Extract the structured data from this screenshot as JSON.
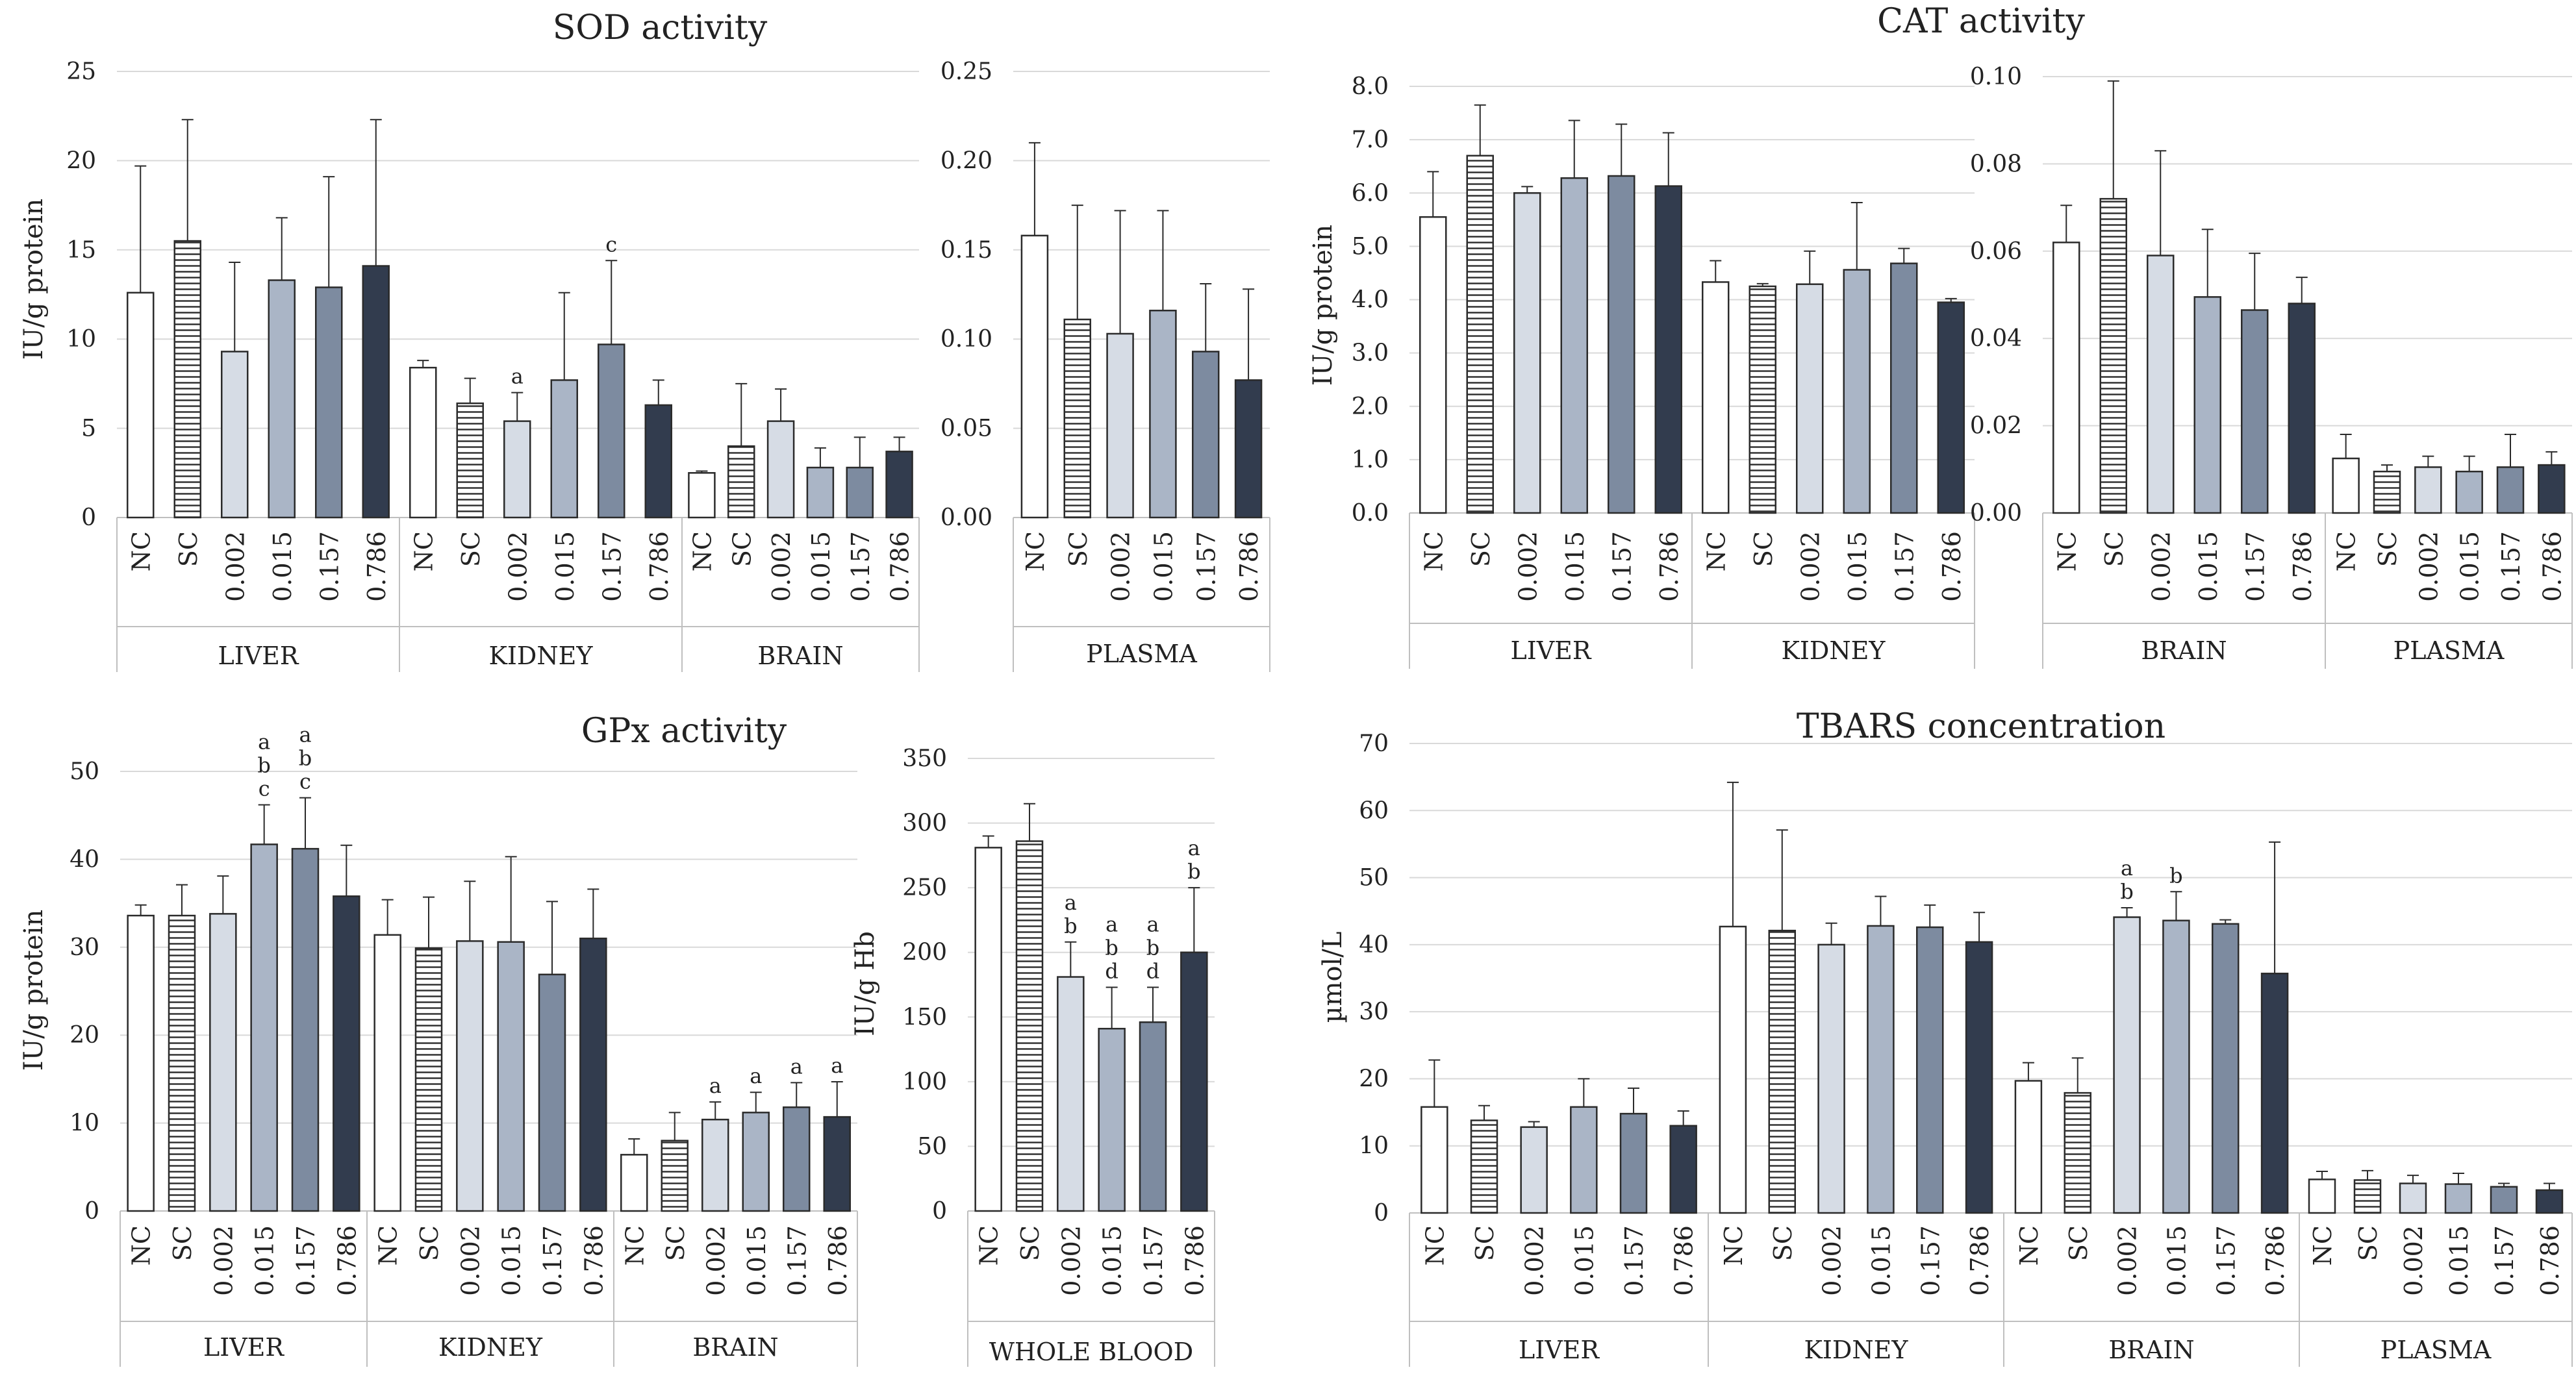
{
  "colors": {
    "background": "#ffffff",
    "grid": "#d9d9d9",
    "axis": "#bfbfbf",
    "outline": "#2b2b2b",
    "NC": "#ffffff",
    "SC": "#ffffff",
    "0.002": "#d6dce5",
    "0.015": "#aab5c6",
    "0.157": "#7d8ba0",
    "0.786": "#323c4e"
  },
  "categories": [
    "NC",
    "SC",
    "0.002",
    "0.015",
    "0.157",
    "0.786"
  ],
  "chart_data": [
    {
      "id": "sod-organs",
      "type": "bar",
      "title": "SOD activity",
      "ylabel": "IU/g protein",
      "ylim": [
        0,
        25
      ],
      "yticks": [
        "0",
        "5",
        "10",
        "15",
        "20",
        "25"
      ],
      "groups": [
        {
          "name": "LIVER",
          "values": [
            12.6,
            15.5,
            9.3,
            13.3,
            12.9,
            14.1
          ],
          "errors": [
            7.1,
            6.8,
            5.0,
            3.5,
            6.2,
            8.2
          ],
          "annotations": [
            "",
            "",
            "",
            "",
            "",
            ""
          ]
        },
        {
          "name": "KIDNEY",
          "values": [
            8.4,
            6.4,
            5.4,
            7.7,
            9.7,
            6.3
          ],
          "errors": [
            0.4,
            1.4,
            1.6,
            4.9,
            4.7,
            1.4
          ],
          "annotations": [
            "",
            "",
            "a",
            "",
            "c",
            ""
          ]
        },
        {
          "name": "BRAIN",
          "values": [
            2.5,
            4.0,
            5.4,
            2.8,
            2.8,
            3.7
          ],
          "errors": [
            0.1,
            3.5,
            1.8,
            1.1,
            1.7,
            0.8
          ],
          "annotations": [
            "",
            "",
            "",
            "",
            "",
            ""
          ]
        }
      ]
    },
    {
      "id": "sod-plasma",
      "type": "bar",
      "title": "",
      "ylabel": "",
      "ylim": [
        0,
        0.25
      ],
      "yticks": [
        "0.00",
        "0.05",
        "0.10",
        "0.15",
        "0.20",
        "0.25"
      ],
      "groups": [
        {
          "name": "PLASMA",
          "values": [
            0.158,
            0.111,
            0.103,
            0.116,
            0.093,
            0.077
          ],
          "errors": [
            0.052,
            0.064,
            0.069,
            0.056,
            0.038,
            0.051
          ],
          "annotations": [
            "",
            "",
            "",
            "",
            "",
            ""
          ]
        }
      ]
    },
    {
      "id": "cat-organs",
      "type": "bar",
      "title": "CAT activity",
      "ylabel": "IU/g protein",
      "ylim": [
        0,
        8
      ],
      "yticks": [
        "0.0",
        "1.0",
        "2.0",
        "3.0",
        "4.0",
        "5.0",
        "6.0",
        "7.0",
        "8.0"
      ],
      "groups": [
        {
          "name": "LIVER",
          "values": [
            5.55,
            6.7,
            6.0,
            6.28,
            6.32,
            6.13
          ],
          "errors": [
            0.85,
            0.95,
            0.12,
            1.08,
            0.97,
            1.0
          ],
          "annotations": [
            "",
            "",
            "",
            "",
            "",
            ""
          ]
        },
        {
          "name": "KIDNEY",
          "values": [
            4.33,
            4.25,
            4.29,
            4.56,
            4.68,
            3.95
          ],
          "errors": [
            0.4,
            0.05,
            0.62,
            1.26,
            0.28,
            0.07
          ],
          "annotations": [
            "",
            "",
            "",
            "",
            "",
            ""
          ]
        }
      ]
    },
    {
      "id": "cat-brain-plasma",
      "type": "bar",
      "title": "",
      "ylabel": "",
      "ylim": [
        0,
        0.1
      ],
      "yticks": [
        "0.00",
        "0.02",
        "0.04",
        "0.06",
        "0.08",
        "0.10"
      ],
      "groups": [
        {
          "name": "BRAIN",
          "values": [
            0.062,
            0.072,
            0.059,
            0.0495,
            0.0465,
            0.048
          ],
          "errors": [
            0.0085,
            0.027,
            0.024,
            0.0155,
            0.013,
            0.006
          ],
          "annotations": [
            "",
            "",
            "",
            "",
            "",
            ""
          ]
        },
        {
          "name": "PLASMA",
          "values": [
            0.0125,
            0.0095,
            0.0105,
            0.0095,
            0.0105,
            0.011
          ],
          "errors": [
            0.0055,
            0.0015,
            0.0025,
            0.0035,
            0.0075,
            0.003
          ],
          "annotations": [
            "",
            "",
            "",
            "",
            "",
            ""
          ]
        }
      ]
    },
    {
      "id": "gpx-organs",
      "type": "bar",
      "title": "GPx activity",
      "ylabel": "IU/g protein",
      "ylim": [
        0,
        50
      ],
      "yticks": [
        "0",
        "10",
        "20",
        "30",
        "40",
        "50"
      ],
      "groups": [
        {
          "name": "LIVER",
          "values": [
            33.6,
            33.6,
            33.8,
            41.7,
            41.2,
            35.8
          ],
          "errors": [
            1.2,
            3.5,
            4.3,
            4.5,
            5.8,
            5.8
          ],
          "annotations": [
            "",
            "",
            "",
            "a\nb\nc",
            "a\nb\nc",
            ""
          ]
        },
        {
          "name": "KIDNEY",
          "values": [
            31.4,
            29.9,
            30.7,
            30.6,
            26.9,
            31.0
          ],
          "errors": [
            4.0,
            5.8,
            6.8,
            9.7,
            8.3,
            5.6
          ],
          "annotations": [
            "",
            "",
            "",
            "",
            "",
            ""
          ]
        },
        {
          "name": "BRAIN",
          "values": [
            6.4,
            8.0,
            10.4,
            11.2,
            11.8,
            10.7
          ],
          "errors": [
            1.8,
            3.2,
            2.0,
            2.3,
            2.8,
            4.0
          ],
          "annotations": [
            "",
            "",
            "a",
            "a",
            "a",
            "a"
          ]
        }
      ]
    },
    {
      "id": "gpx-blood",
      "type": "bar",
      "title": "",
      "ylabel": "IU/g Hb",
      "ylim": [
        0,
        350
      ],
      "yticks": [
        "0",
        "50",
        "100",
        "150",
        "200",
        "250",
        "300",
        "350"
      ],
      "groups": [
        {
          "name": "WHOLE BLOOD",
          "values": [
            281,
            286,
            181,
            141,
            146,
            200
          ],
          "errors": [
            9,
            29,
            27,
            32,
            27,
            50
          ],
          "annotations": [
            "",
            "",
            "a\nb",
            "a\nb\nd",
            "a\nb\nd",
            "a\nb"
          ]
        }
      ]
    },
    {
      "id": "tbars",
      "type": "bar",
      "title": "TBARS concentration",
      "ylabel": "µmol/L",
      "ylim": [
        0,
        70
      ],
      "yticks": [
        "0",
        "10",
        "20",
        "30",
        "40",
        "50",
        "60",
        "70"
      ],
      "groups": [
        {
          "name": "LIVER",
          "values": [
            15.8,
            13.8,
            12.8,
            15.8,
            14.8,
            13.0
          ],
          "errors": [
            7.0,
            2.2,
            0.8,
            4.2,
            3.8,
            2.2
          ],
          "annotations": [
            "",
            "",
            "",
            "",
            "",
            ""
          ]
        },
        {
          "name": "KIDNEY",
          "values": [
            42.7,
            42.1,
            40.0,
            42.8,
            42.6,
            40.4
          ],
          "errors": [
            21.5,
            15.0,
            3.2,
            4.4,
            3.3,
            4.4
          ],
          "annotations": [
            "",
            "",
            "",
            "",
            "",
            ""
          ]
        },
        {
          "name": "BRAIN",
          "values": [
            19.7,
            17.9,
            44.1,
            43.6,
            43.1,
            35.7
          ],
          "errors": [
            2.7,
            5.2,
            1.4,
            4.3,
            0.6,
            19.6
          ],
          "annotations": [
            "",
            "",
            "a\nb",
            "b",
            "",
            ""
          ]
        },
        {
          "name": "PLASMA",
          "values": [
            5.0,
            4.9,
            4.4,
            4.3,
            3.9,
            3.4
          ],
          "errors": [
            1.2,
            1.4,
            1.2,
            1.6,
            0.5,
            1.0
          ],
          "annotations": [
            "",
            "",
            "",
            "",
            "",
            ""
          ]
        }
      ]
    }
  ]
}
